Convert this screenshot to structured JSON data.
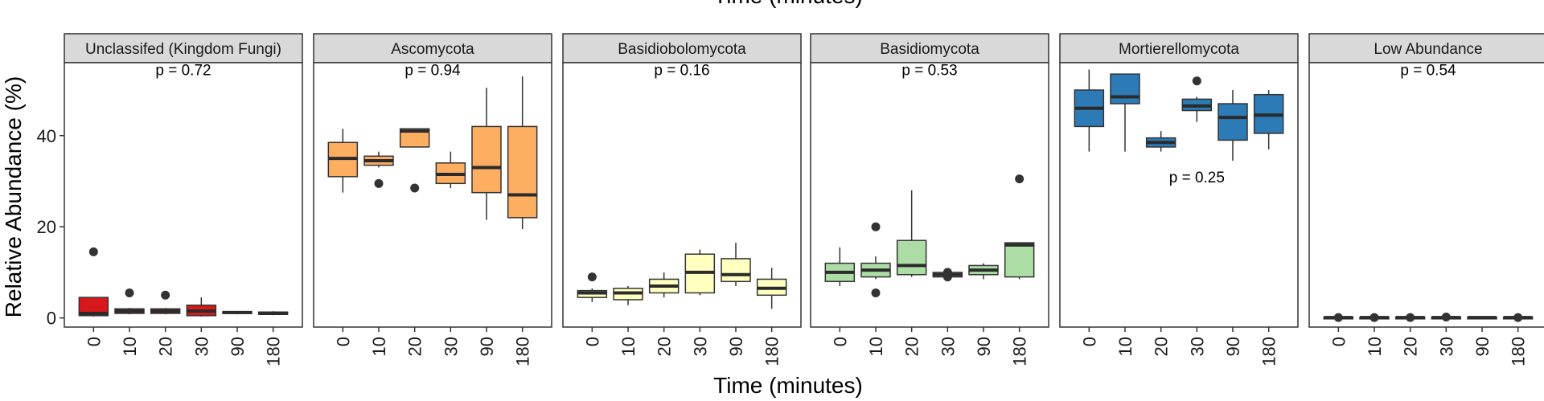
{
  "chart_data": {
    "type": "box",
    "top_title": "Time (minutes)",
    "xlabel": "Time (minutes)",
    "ylabel": "Relative Abundance (%)",
    "ylim": [
      -2,
      56
    ],
    "yticks": [
      0,
      20,
      40
    ],
    "categories": [
      "0",
      "10",
      "20",
      "30",
      "90",
      "180"
    ],
    "panels": [
      {
        "name": "Unclassifed (Kingdom Fungi)",
        "color": "#d7191c",
        "pvalues": [
          {
            "text": "p = 0.72",
            "x_cat": 2.5,
            "y": 54.5
          }
        ],
        "boxes": [
          {
            "min": 0.3,
            "q1": 0.5,
            "median": 1.0,
            "q3": 4.5,
            "max": 4.5,
            "outliers": [
              14.5
            ]
          },
          {
            "min": 0.8,
            "q1": 1.0,
            "median": 1.5,
            "q3": 2.0,
            "max": 2.2,
            "outliers": [
              5.5
            ]
          },
          {
            "min": 0.8,
            "q1": 1.0,
            "median": 1.5,
            "q3": 2.0,
            "max": 2.2,
            "outliers": [
              5.0
            ]
          },
          {
            "min": 0.3,
            "q1": 0.5,
            "median": 1.5,
            "q3": 2.8,
            "max": 4.5,
            "outliers": []
          },
          {
            "min": 0.8,
            "q1": 1.0,
            "median": 1.2,
            "q3": 1.4,
            "max": 1.5,
            "outliers": []
          },
          {
            "min": 0.6,
            "q1": 0.8,
            "median": 1.0,
            "q3": 1.3,
            "max": 1.5,
            "outliers": []
          }
        ]
      },
      {
        "name": "Ascomycota",
        "color": "#fdae61",
        "pvalues": [
          {
            "text": "p = 0.94",
            "x_cat": 2.5,
            "y": 54.5
          }
        ],
        "boxes": [
          {
            "min": 27.5,
            "q1": 31.0,
            "median": 35.0,
            "q3": 38.5,
            "max": 41.5,
            "outliers": []
          },
          {
            "min": 33.0,
            "q1": 33.5,
            "median": 34.5,
            "q3": 35.5,
            "max": 36.5,
            "outliers": [
              29.5
            ]
          },
          {
            "min": 37.5,
            "q1": 37.5,
            "median": 41.0,
            "q3": 41.5,
            "max": 41.5,
            "outliers": [
              28.5
            ]
          },
          {
            "min": 28.5,
            "q1": 29.5,
            "median": 31.5,
            "q3": 34.0,
            "max": 36.5,
            "outliers": []
          },
          {
            "min": 21.5,
            "q1": 27.5,
            "median": 33.0,
            "q3": 42.0,
            "max": 50.5,
            "outliers": []
          },
          {
            "min": 19.5,
            "q1": 22.0,
            "median": 27.0,
            "q3": 42.0,
            "max": 53.0,
            "outliers": []
          }
        ]
      },
      {
        "name": "Basidiobolomycota",
        "color": "#ffffbf",
        "pvalues": [
          {
            "text": "p = 0.16",
            "x_cat": 2.5,
            "y": 54.5
          }
        ],
        "boxes": [
          {
            "min": 3.5,
            "q1": 4.5,
            "median": 5.5,
            "q3": 6.0,
            "max": 6.5,
            "outliers": [
              9.0
            ]
          },
          {
            "min": 2.8,
            "q1": 4.0,
            "median": 5.5,
            "q3": 6.5,
            "max": 7.0,
            "outliers": []
          },
          {
            "min": 4.5,
            "q1": 5.5,
            "median": 7.0,
            "q3": 8.5,
            "max": 10.0,
            "outliers": []
          },
          {
            "min": 5.0,
            "q1": 5.5,
            "median": 10.0,
            "q3": 14.0,
            "max": 15.0,
            "outliers": []
          },
          {
            "min": 7.0,
            "q1": 8.0,
            "median": 9.5,
            "q3": 13.0,
            "max": 16.5,
            "outliers": []
          },
          {
            "min": 2.0,
            "q1": 5.0,
            "median": 6.5,
            "q3": 8.5,
            "max": 11.0,
            "outliers": []
          }
        ]
      },
      {
        "name": "Basidiomycota",
        "color": "#abdda4",
        "pvalues": [
          {
            "text": "p = 0.53",
            "x_cat": 2.5,
            "y": 54.5
          }
        ],
        "boxes": [
          {
            "min": 7.0,
            "q1": 8.0,
            "median": 10.0,
            "q3": 12.0,
            "max": 15.5,
            "outliers": []
          },
          {
            "min": 8.5,
            "q1": 9.0,
            "median": 10.5,
            "q3": 12.0,
            "max": 13.5,
            "outliers": [
              20.0,
              5.5
            ]
          },
          {
            "min": 9.0,
            "q1": 9.5,
            "median": 11.5,
            "q3": 17.0,
            "max": 28.0,
            "outliers": []
          },
          {
            "min": 8.8,
            "q1": 9.0,
            "median": 9.5,
            "q3": 10.0,
            "max": 10.5,
            "outliers": [
              9.0,
              10.0
            ]
          },
          {
            "min": 8.5,
            "q1": 9.5,
            "median": 10.5,
            "q3": 11.5,
            "max": 12.0,
            "outliers": []
          },
          {
            "min": 8.5,
            "q1": 9.0,
            "median": 16.0,
            "q3": 16.5,
            "max": 16.5,
            "outliers": [
              30.5
            ]
          }
        ]
      },
      {
        "name": "Mortierellomycota",
        "color": "#2c7bb6",
        "pvalues": [
          {
            "text": "p = 0.25",
            "x_cat": 3.0,
            "y": 31.0
          }
        ],
        "boxes": [
          {
            "min": 36.5,
            "q1": 42.0,
            "median": 46.0,
            "q3": 50.0,
            "max": 54.5,
            "outliers": []
          },
          {
            "min": 36.5,
            "q1": 47.0,
            "median": 48.5,
            "q3": 53.5,
            "max": 53.5,
            "outliers": []
          },
          {
            "min": 36.5,
            "q1": 37.5,
            "median": 38.5,
            "q3": 39.5,
            "max": 41.0,
            "outliers": []
          },
          {
            "min": 43.0,
            "q1": 45.5,
            "median": 46.5,
            "q3": 48.0,
            "max": 48.5,
            "outliers": [
              52.0
            ]
          },
          {
            "min": 34.5,
            "q1": 39.0,
            "median": 44.0,
            "q3": 47.0,
            "max": 50.0,
            "outliers": []
          },
          {
            "min": 37.0,
            "q1": 40.5,
            "median": 44.5,
            "q3": 49.0,
            "max": 50.0,
            "outliers": []
          }
        ]
      },
      {
        "name": "Low Abundance",
        "color": "#cfcfcf",
        "pvalues": [
          {
            "text": "p = 0.54",
            "x_cat": 2.5,
            "y": 54.5
          }
        ],
        "boxes": [
          {
            "min": 0.0,
            "q1": 0.05,
            "median": 0.1,
            "q3": 0.15,
            "max": 0.2,
            "outliers": [
              0.1
            ]
          },
          {
            "min": 0.0,
            "q1": 0.05,
            "median": 0.1,
            "q3": 0.15,
            "max": 0.2,
            "outliers": [
              0.1
            ]
          },
          {
            "min": 0.0,
            "q1": 0.05,
            "median": 0.1,
            "q3": 0.15,
            "max": 0.2,
            "outliers": [
              0.1
            ]
          },
          {
            "min": 0.0,
            "q1": 0.05,
            "median": 0.1,
            "q3": 0.15,
            "max": 0.2,
            "outliers": [
              0.2
            ]
          },
          {
            "min": 0.0,
            "q1": 0.05,
            "median": 0.1,
            "q3": 0.15,
            "max": 0.2,
            "outliers": []
          },
          {
            "min": 0.0,
            "q1": 0.05,
            "median": 0.1,
            "q3": 0.15,
            "max": 0.2,
            "outliers": [
              0.1
            ]
          }
        ]
      }
    ]
  }
}
